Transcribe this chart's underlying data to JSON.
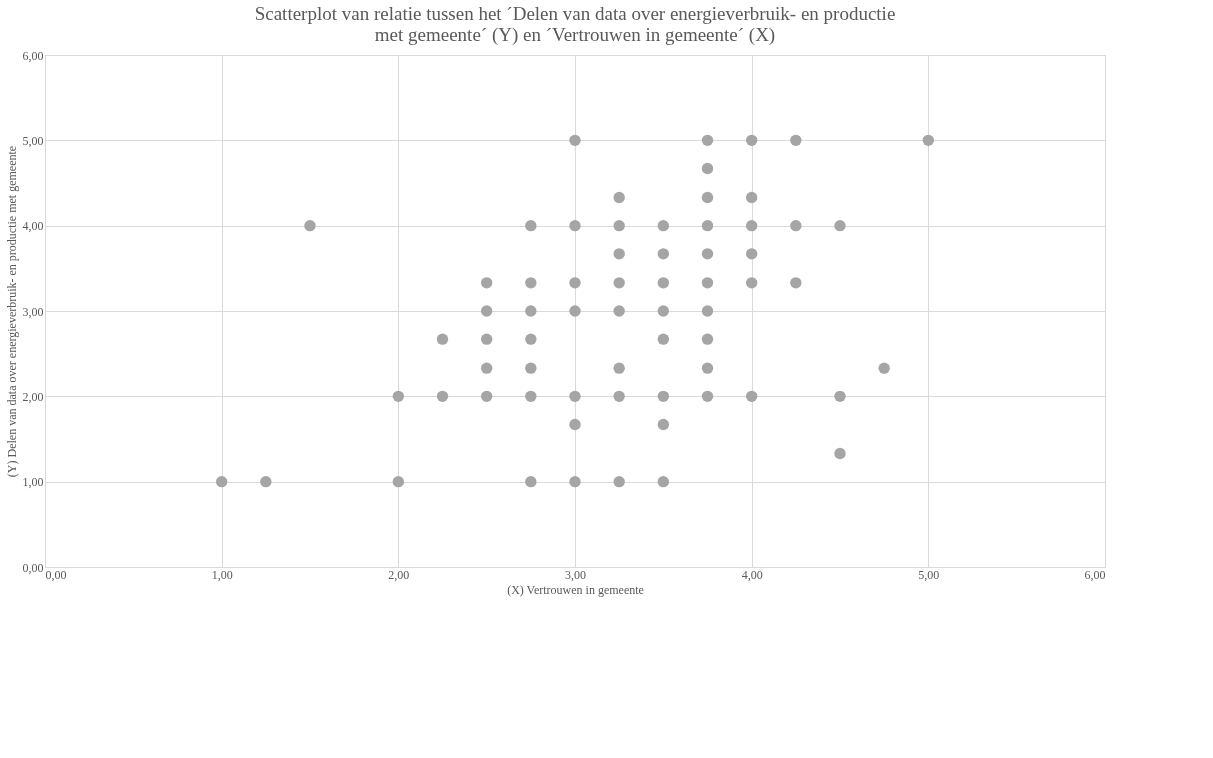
{
  "chart_data": {
    "type": "scatter",
    "title": "Scatterplot van relatie tussen het ´Delen van data over energieverbruik- en productie met gemeente´ (Y) en ´Vertrouwen in gemeente´ (X)",
    "xlabel": "(X) Vertrouwen in gemeente",
    "ylabel": "(Y) Delen van data over energieverbruik- en productie met gemeente",
    "x": [
      1.0,
      1.25,
      1.5,
      2.0,
      2.0,
      2.25,
      2.25,
      2.5,
      2.5,
      2.5,
      2.5,
      2.5,
      2.75,
      2.75,
      2.75,
      2.75,
      2.75,
      2.75,
      2.75,
      3.0,
      3.0,
      3.0,
      3.0,
      3.0,
      3.0,
      3.0,
      3.25,
      3.25,
      3.25,
      3.25,
      3.25,
      3.25,
      3.25,
      3.25,
      3.5,
      3.5,
      3.5,
      3.5,
      3.5,
      3.5,
      3.5,
      3.5,
      3.75,
      3.75,
      3.75,
      3.75,
      3.75,
      3.75,
      3.75,
      3.75,
      3.75,
      3.75,
      4.0,
      4.0,
      4.0,
      4.0,
      4.0,
      4.0,
      4.25,
      4.25,
      4.25,
      4.5,
      4.5,
      4.5,
      4.75,
      5.0
    ],
    "series": [
      {
        "color": "#a5a5a5",
        "values": [
          1,
          1,
          4,
          2,
          1,
          2.67,
          2,
          3.33,
          3,
          2.67,
          2.33,
          2,
          4,
          3.33,
          3,
          2.67,
          2.33,
          2,
          1,
          5,
          4,
          3.33,
          3,
          2,
          1.67,
          1,
          4.33,
          4,
          3.67,
          3.33,
          3,
          2.33,
          2,
          1,
          4,
          3.67,
          3.33,
          3,
          2.67,
          2,
          1.67,
          1,
          5,
          4.67,
          4.33,
          4,
          3.67,
          3.33,
          3,
          2.67,
          2.33,
          2,
          5,
          4.33,
          4,
          3.67,
          3.33,
          2,
          5,
          4,
          3.33,
          4,
          2,
          1.33,
          2.33,
          5
        ]
      }
    ],
    "xlim": [
      0,
      6
    ],
    "ylim": [
      0,
      6
    ],
    "xticks": [
      {
        "value": 0,
        "label": "0,00"
      },
      {
        "value": 1,
        "label": "1,00"
      },
      {
        "value": 2,
        "label": "2,00"
      },
      {
        "value": 3,
        "label": "3,00"
      },
      {
        "value": 4,
        "label": "4,00"
      },
      {
        "value": 5,
        "label": "5,00"
      },
      {
        "value": 6,
        "label": "6,00"
      }
    ],
    "yticks": [
      {
        "value": 0,
        "label": "0,00"
      },
      {
        "value": 1,
        "label": "1,00"
      },
      {
        "value": 2,
        "label": "2,00"
      },
      {
        "value": 3,
        "label": "3,00"
      },
      {
        "value": 4,
        "label": "4,00"
      },
      {
        "value": 5,
        "label": "5,00"
      },
      {
        "value": 6,
        "label": "6,00"
      }
    ],
    "grid": true,
    "marker": "circle"
  }
}
